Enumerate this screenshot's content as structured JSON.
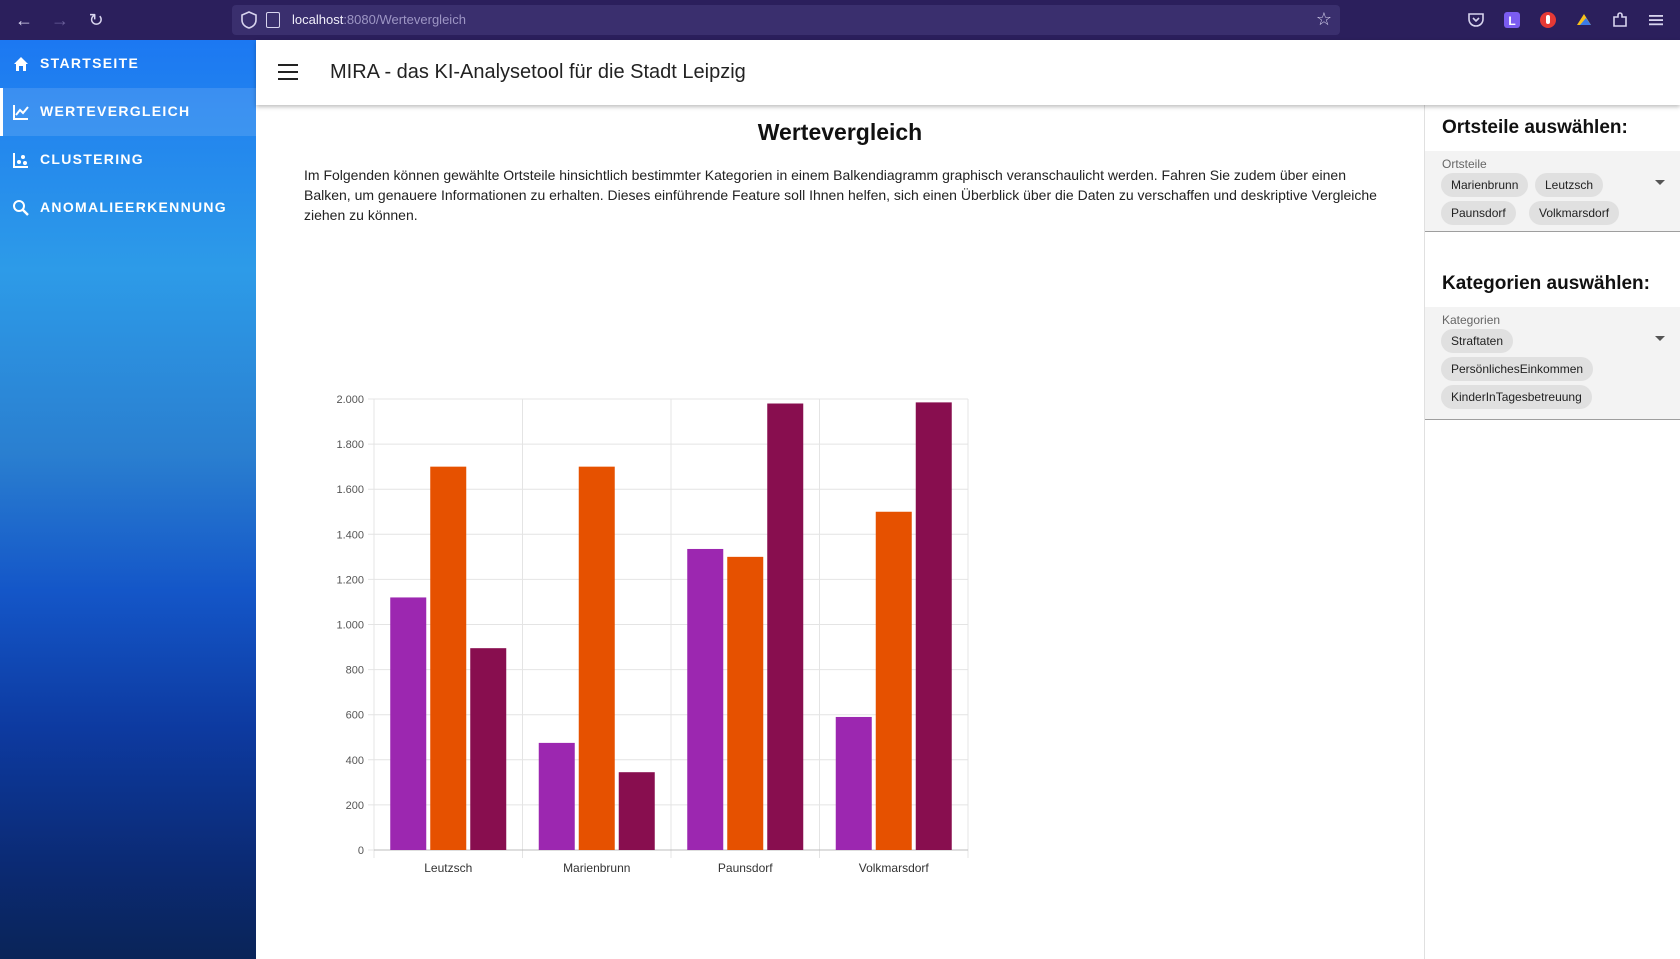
{
  "browser": {
    "url_host": "localhost",
    "url_path": ":8080/Wertevergleich"
  },
  "sidebar": {
    "items": [
      {
        "label": "STARTSEITE",
        "icon": "home-icon"
      },
      {
        "label": "WERTEVERGLEICH",
        "icon": "chart-line-icon",
        "active": true
      },
      {
        "label": "CLUSTERING",
        "icon": "scatter-icon"
      },
      {
        "label": "ANOMALIEERKENNUNG",
        "icon": "search-icon"
      }
    ]
  },
  "header": {
    "title": "MIRA - das KI-Analysetool für die Stadt Leipzig"
  },
  "main": {
    "title": "Wertevergleich",
    "intro": "Im Folgenden können gewählte Ortsteile hinsichtlich bestimmter Kategorien in einem Balkendiagramm graphisch veranschaulicht werden. Fahren Sie zudem über einen Balken, um genauere Informationen zu erhalten. Dieses einführende Feature soll Ihnen helfen, sich einen Überblick über die Daten zu verschaffen und deskriptive Vergleiche ziehen zu können."
  },
  "right_panel": {
    "ortsteile_title": "Ortsteile auswählen:",
    "ortsteile_label": "Ortsteile",
    "ortsteile": [
      "Marienbrunn",
      "Leutzsch",
      "Paunsdorf",
      "Volkmarsdorf"
    ],
    "kategorien_title": "Kategorien auswählen:",
    "kategorien_label": "Kategorien",
    "kategorien": [
      "Straftaten",
      "PersönlichesEinkommen",
      "KinderInTagesbetreuung"
    ]
  },
  "colors": {
    "series1": "#9c27b0",
    "series2": "#e65100",
    "series3": "#880e4f"
  },
  "chart_data": {
    "type": "bar",
    "categories": [
      "Leutzsch",
      "Marienbrunn",
      "Paunsdorf",
      "Volkmarsdorf"
    ],
    "series": [
      {
        "values": [
          1120,
          475,
          1335,
          590
        ]
      },
      {
        "values": [
          1700,
          1700,
          1300,
          1500
        ]
      },
      {
        "values": [
          895,
          345,
          1980,
          1985
        ]
      }
    ],
    "ylim": [
      0,
      2000
    ],
    "yticks": [
      0,
      200,
      400,
      600,
      800,
      1000,
      1200,
      1400,
      1600,
      1800,
      2000
    ],
    "ytick_labels": [
      "0",
      "200",
      "400",
      "600",
      "800",
      "1.000",
      "1.200",
      "1.400",
      "1.600",
      "1.800",
      "2.000"
    ],
    "grid": true,
    "legend": "none"
  }
}
